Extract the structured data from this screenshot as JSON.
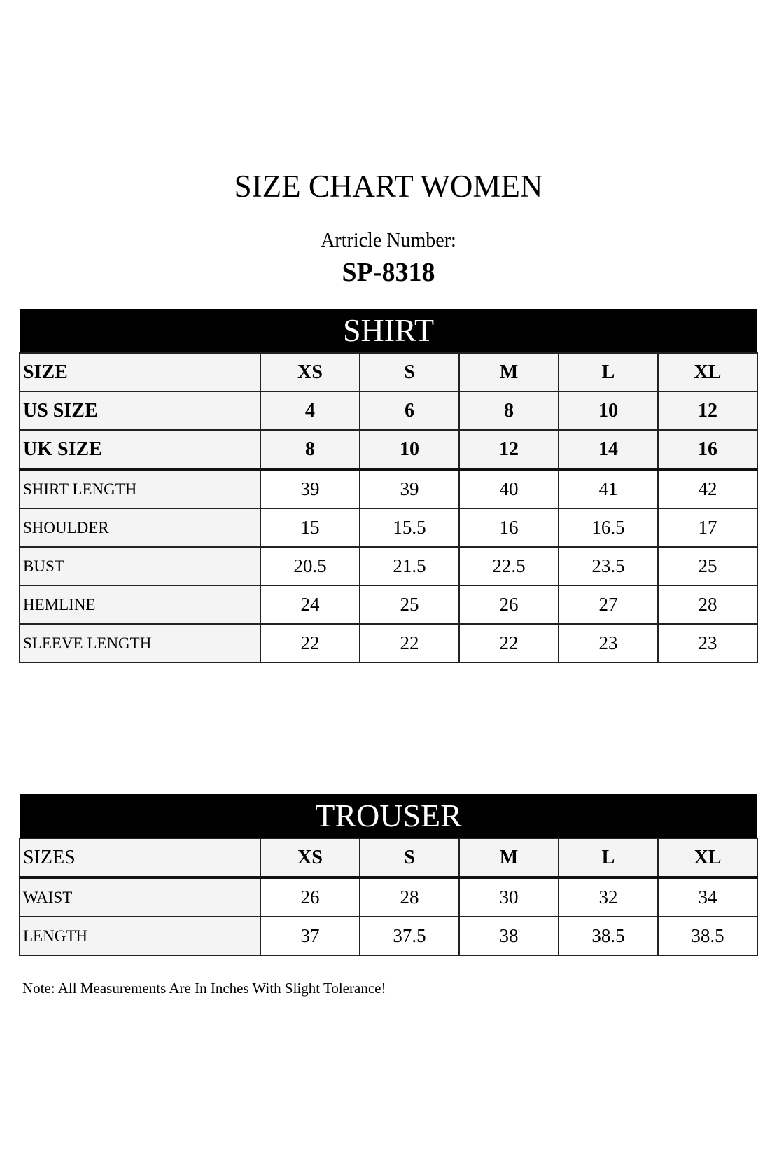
{
  "title": "SIZE CHART WOMEN",
  "article_label": "Artricle Number:",
  "article_number": "SP-8318",
  "shirt": {
    "heading": "SHIRT",
    "header_rows": [
      {
        "label": "SIZE",
        "values": [
          "XS",
          "S",
          "M",
          "L",
          "XL"
        ]
      },
      {
        "label": "US SIZE",
        "values": [
          "4",
          "6",
          "8",
          "10",
          "12"
        ]
      },
      {
        "label": "UK SIZE",
        "values": [
          "8",
          "10",
          "12",
          "14",
          "16"
        ]
      }
    ],
    "rows": [
      {
        "label": "SHIRT LENGTH",
        "values": [
          "39",
          "39",
          "40",
          "41",
          "42"
        ]
      },
      {
        "label": "SHOULDER",
        "values": [
          "15",
          "15.5",
          "16",
          "16.5",
          "17"
        ]
      },
      {
        "label": "BUST",
        "values": [
          "20.5",
          "21.5",
          "22.5",
          "23.5",
          "25"
        ]
      },
      {
        "label": "HEMLINE",
        "values": [
          "24",
          "25",
          "26",
          "27",
          "28"
        ]
      },
      {
        "label": "SLEEVE LENGTH",
        "values": [
          "22",
          "22",
          "22",
          "23",
          "23"
        ]
      }
    ]
  },
  "trouser": {
    "heading": "TROUSER",
    "header_rows": [
      {
        "label": "SIZES",
        "values": [
          "XS",
          "S",
          "M",
          "L",
          "XL"
        ]
      }
    ],
    "rows": [
      {
        "label": "WAIST",
        "values": [
          "26",
          "28",
          "30",
          "32",
          "34"
        ]
      },
      {
        "label": "LENGTH",
        "values": [
          "37",
          "37.5",
          "38",
          "38.5",
          "38.5"
        ]
      }
    ]
  },
  "note": "Note: All Measurements Are In Inches With Slight Tolerance!"
}
